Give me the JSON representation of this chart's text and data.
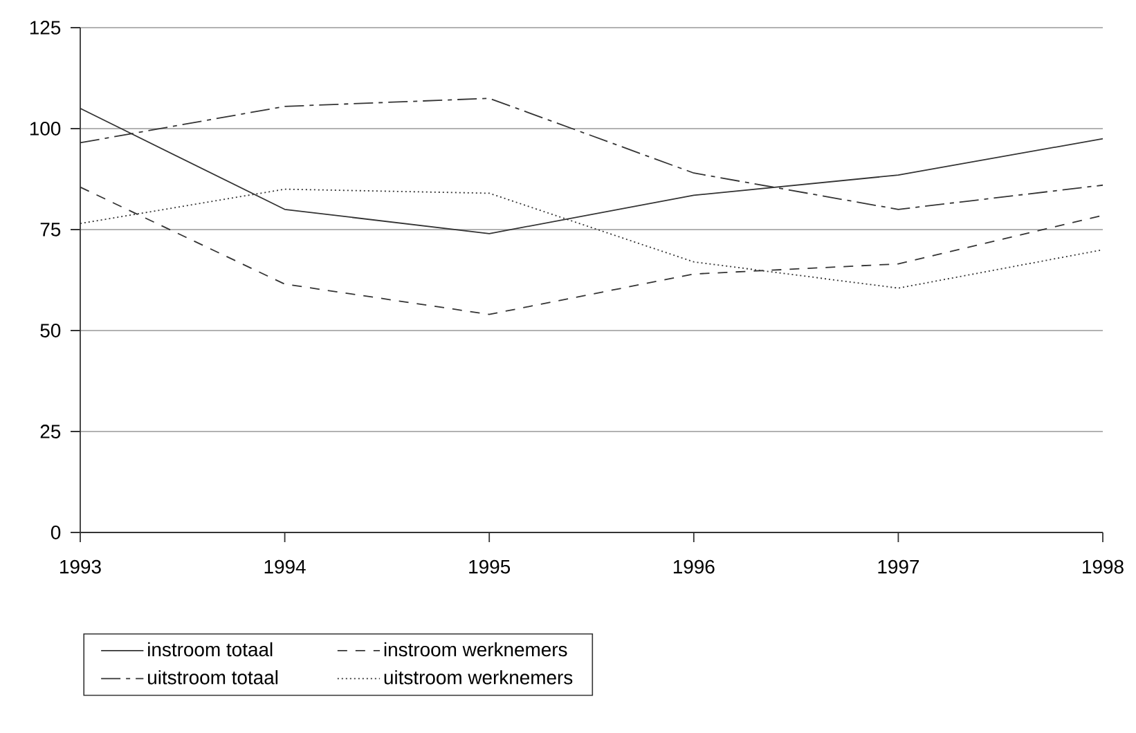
{
  "chart_data": {
    "type": "line",
    "x": [
      1993,
      1994,
      1995,
      1996,
      1997,
      1998
    ],
    "xlim": [
      1993,
      1998
    ],
    "xticks": [
      1993,
      1994,
      1995,
      1996,
      1997,
      1998
    ],
    "ylim": [
      0,
      125
    ],
    "yticks": [
      0,
      25,
      50,
      75,
      100,
      125
    ],
    "grid": "y",
    "legend": "bottom",
    "series": [
      {
        "name": "instroom totaal",
        "color": "#333333",
        "line_style": "solid",
        "values": [
          105,
          80,
          74,
          83.5,
          88.5,
          97.5
        ]
      },
      {
        "name": "uitstroom totaal",
        "color": "#333333",
        "line_style": "dashdot",
        "values": [
          96.5,
          105.5,
          107.5,
          89,
          80,
          86
        ]
      },
      {
        "name": "instroom werknemers",
        "color": "#333333",
        "line_style": "dashed",
        "values": [
          85.5,
          61.5,
          54,
          64,
          66.5,
          78.5
        ]
      },
      {
        "name": "uitstroom werknemers",
        "color": "#333333",
        "line_style": "dotted",
        "values": [
          76.5,
          85,
          84,
          67,
          60.5,
          70
        ]
      }
    ]
  }
}
